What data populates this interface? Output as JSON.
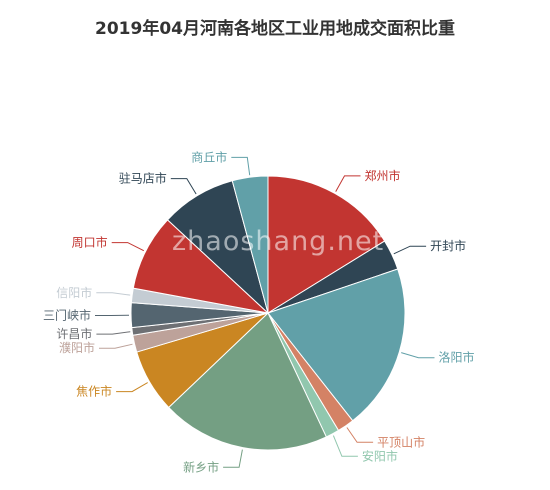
{
  "watermark": "zhaoshang.net",
  "chart_data": {
    "type": "pie",
    "title": "2019年04月河南各地区工业用地成交面积比重",
    "start_angle_deg": 90,
    "direction": "clockwise",
    "slices": [
      {
        "label": "郑州市",
        "value": 16.2,
        "color": "#c23531"
      },
      {
        "label": "开封市",
        "value": 3.6,
        "color": "#2f4554"
      },
      {
        "label": "洛阳市",
        "value": 19.6,
        "color": "#61a0a8"
      },
      {
        "label": "平顶山市",
        "value": 2.0,
        "color": "#d48265"
      },
      {
        "label": "安阳市",
        "value": 1.6,
        "color": "#91c7ae"
      },
      {
        "label": "新乡市",
        "value": 19.9,
        "color": "#749f83"
      },
      {
        "label": "焦作市",
        "value": 7.5,
        "color": "#ca8622"
      },
      {
        "label": "濮阳市",
        "value": 2.0,
        "color": "#bda29a"
      },
      {
        "label": "许昌市",
        "value": 0.9,
        "color": "#6e7074"
      },
      {
        "label": "三门峡市",
        "value": 2.9,
        "color": "#546570"
      },
      {
        "label": "信阳市",
        "value": 1.7,
        "color": "#c4ccd3"
      },
      {
        "label": "周口市",
        "value": 9.0,
        "color": "#c23531"
      },
      {
        "label": "驻马店市",
        "value": 8.9,
        "color": "#2f4554"
      },
      {
        "label": "商丘市",
        "value": 4.2,
        "color": "#61a0a8"
      }
    ]
  }
}
